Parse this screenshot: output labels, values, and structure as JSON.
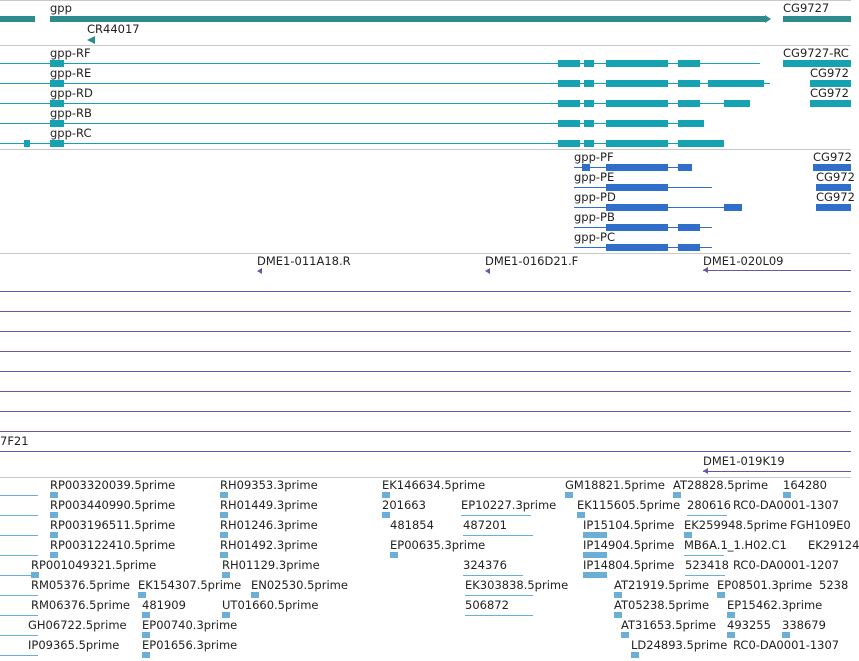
{
  "colors": {
    "gene": "#2e8b8b",
    "cds": "#17a2b4",
    "protein": "#2f6fc9",
    "clone": "#6a55a8",
    "est": "#6baed6",
    "track_border": "#c8c8c8"
  },
  "tracks": {
    "genes": {
      "items": [
        {
          "label": "gpp",
          "icon": "gene-bar"
        },
        {
          "label": "CR44017",
          "icon": "arrow-left-icon"
        },
        {
          "label": "CG9727",
          "icon": "gene-bar"
        }
      ]
    },
    "transcripts": {
      "items": [
        {
          "label": "gpp-RF"
        },
        {
          "label": "gpp-RE"
        },
        {
          "label": "gpp-RD"
        },
        {
          "label": "gpp-RB"
        },
        {
          "label": "gpp-RC"
        },
        {
          "label": "CG9727-RC"
        },
        {
          "label": "CG972"
        },
        {
          "label": "CG972"
        }
      ]
    },
    "proteins": {
      "items": [
        {
          "label": "gpp-PF"
        },
        {
          "label": "gpp-PE"
        },
        {
          "label": "gpp-PD"
        },
        {
          "label": "gpp-PB"
        },
        {
          "label": "gpp-PC"
        },
        {
          "label": "CG972"
        },
        {
          "label": "CG972"
        },
        {
          "label": "CG972"
        }
      ]
    },
    "clones": {
      "items": [
        {
          "label": "DME1-011A18.R"
        },
        {
          "label": "DME1-016D21.F"
        },
        {
          "label": "DME1-020L09"
        },
        {
          "label": "7F21"
        },
        {
          "label": "DME1-019K19"
        }
      ]
    },
    "ests": {
      "items": [
        "RP003320039.5prime",
        "RH09353.3prime",
        "EK146634.5prime",
        "GM18821.5prime",
        "AT28828.5prime",
        "164280",
        "RP003440990.5prime",
        "RH01449.3prime",
        "201663",
        "EP10227.3prime",
        "EK115605.5prime",
        "280616",
        "RC0-DA0001-1307",
        "RP003196511.5prime",
        "RH01246.3prime",
        "481854",
        "487201",
        "IP15104.5prime",
        "EK259948.5prime",
        "FGH109E0",
        "RP003122410.5prime",
        "RH01492.3prime",
        "EP00635.3prime",
        "IP14904.5prime",
        "MB6A.1_1.H02.C1",
        "EK29124",
        "RP001049321.5prime",
        "RH01129.3prime",
        "324376",
        "IP14804.5prime",
        "523418",
        "RC0-DA0001-1207",
        "RM05376.5prime",
        "EK154307.5prime",
        "EN02530.5prime",
        "EK303838.5prime",
        "AT21919.5prime",
        "EP08501.3prime",
        "5238",
        "RM06376.5prime",
        "481909",
        "UT01660.5prime",
        "506872",
        "AT05238.5prime",
        "EP15462.3prime",
        "GH06722.5prime",
        "EP00740.3prime",
        "AT31653.5prime",
        "493255",
        "338679",
        "IP09365.5prime",
        "EP01656.3prime",
        "LD24893.5prime",
        "RC0-DA0001-1307"
      ]
    }
  }
}
